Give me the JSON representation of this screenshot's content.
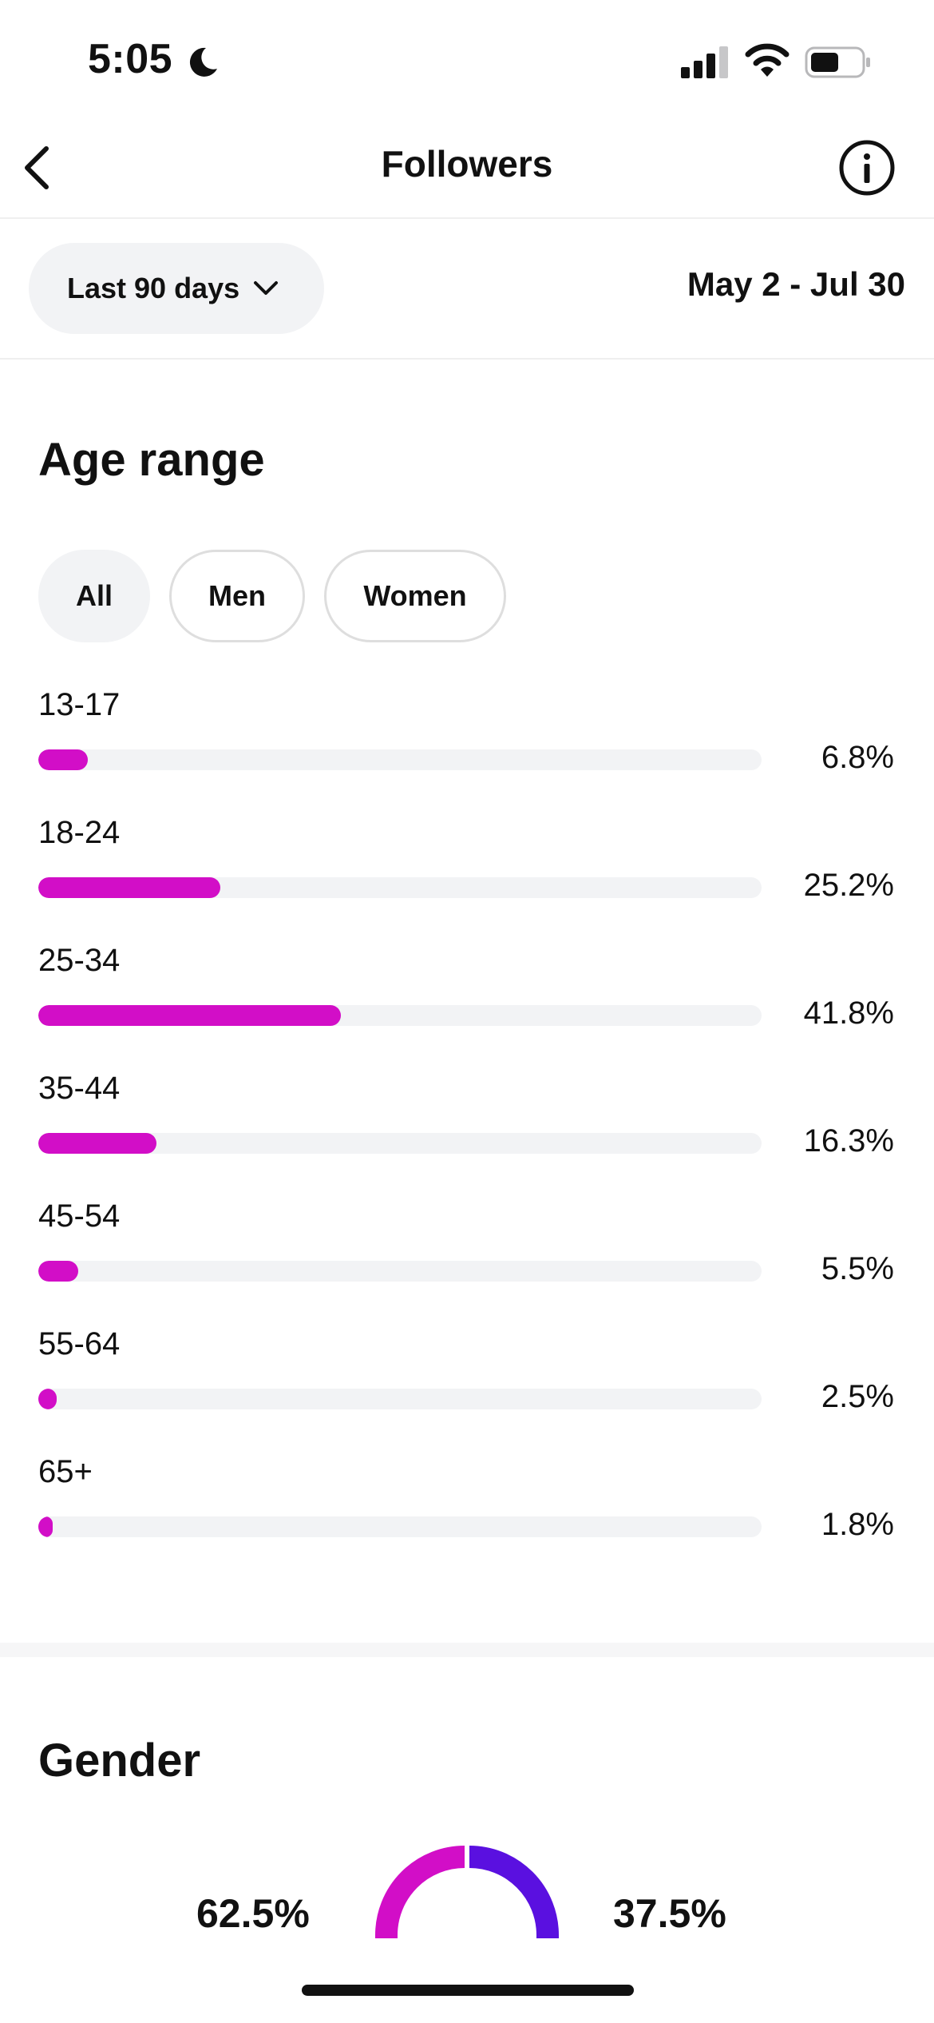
{
  "status_bar": {
    "time": "5:05",
    "icons": [
      "moon-icon",
      "signal-icon",
      "wifi-icon",
      "battery-icon"
    ]
  },
  "nav": {
    "title": "Followers",
    "icons": [
      "back-icon",
      "info-icon"
    ]
  },
  "date_range": {
    "selected": "Last 90 days",
    "dates": "May 2 - Jul 30"
  },
  "age_section": {
    "title": "Age range",
    "filters": [
      {
        "label": "All",
        "active": true
      },
      {
        "label": "Men",
        "active": false
      },
      {
        "label": "Women",
        "active": false
      }
    ],
    "bar_color": "#d20ec7"
  },
  "gender_section": {
    "title": "Gender",
    "left_value": "62.5%",
    "right_value": "37.5%",
    "colors": [
      "#d20ec7",
      "#5a10e0"
    ]
  },
  "chart_data": {
    "type": "bar",
    "orientation": "horizontal",
    "categories": [
      "13-17",
      "18-24",
      "25-34",
      "35-44",
      "45-54",
      "55-64",
      "65+"
    ],
    "values": [
      6.8,
      25.2,
      41.8,
      16.3,
      5.5,
      2.5,
      1.8
    ],
    "value_labels": [
      "6.8%",
      "25.2%",
      "41.8%",
      "16.3%",
      "5.5%",
      "2.5%",
      "1.8%"
    ],
    "xlim": [
      0,
      100
    ],
    "grid": false
  }
}
